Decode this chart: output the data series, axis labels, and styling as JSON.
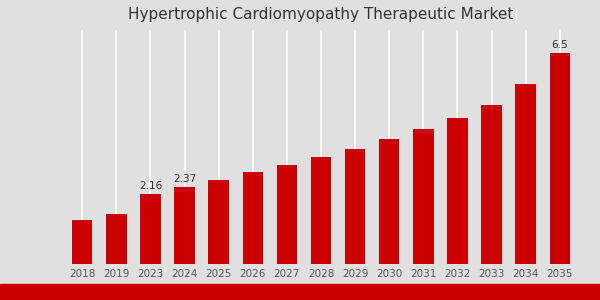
{
  "title": "Hypertrophic Cardiomyopathy Therapeutic Market",
  "categories": [
    "2018",
    "2019",
    "2023",
    "2024",
    "2025",
    "2026",
    "2027",
    "2028",
    "2029",
    "2030",
    "2031",
    "2032",
    "2033",
    "2034",
    "2035"
  ],
  "values": [
    1.35,
    1.55,
    2.16,
    2.37,
    2.6,
    2.82,
    3.05,
    3.28,
    3.55,
    3.85,
    4.15,
    4.5,
    4.9,
    5.55,
    6.5
  ],
  "bar_color": "#cc0000",
  "annotated_indices": [
    2,
    3,
    14
  ],
  "annotated_labels": [
    "2.16",
    "2.37",
    "6.5"
  ],
  "background_color": "#e0e0e0",
  "ylim": [
    0,
    7.2
  ],
  "title_fontsize": 11,
  "label_fontsize": 7.5,
  "annotation_fontsize": 7.5,
  "bottom_bar_color": "#cc0000",
  "bottom_bar_height": 0.18,
  "grid_color": "#ffffff",
  "tick_color": "#555555"
}
